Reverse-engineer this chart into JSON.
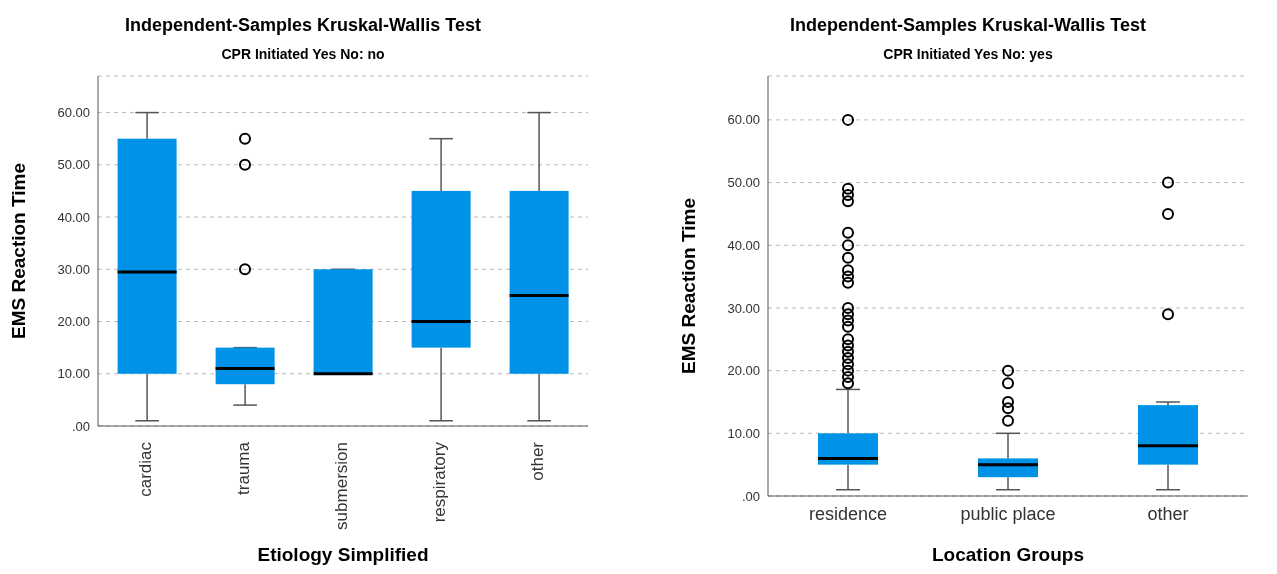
{
  "chart_data": [
    {
      "type": "box",
      "title": "Independent-Samples Kruskal-Wallis Test",
      "subtitle": "CPR Initiated Yes No: no",
      "xlabel": "Etiology Simplified",
      "ylabel": "EMS Reaction Time",
      "categories": [
        "cardiac",
        "trauma",
        "submersion",
        "respiratory",
        "other"
      ],
      "color": "#0092e6",
      "ylim": [
        0,
        67
      ],
      "yticks": [
        {
          "value": 0,
          "label": ".00"
        },
        {
          "value": 10,
          "label": "10.00"
        },
        {
          "value": 20,
          "label": "20.00"
        },
        {
          "value": 30,
          "label": "30.00"
        },
        {
          "value": 40,
          "label": "40.00"
        },
        {
          "value": 50,
          "label": "50.00"
        },
        {
          "value": 60,
          "label": "60.00"
        }
      ],
      "grid": "y",
      "boxes": [
        {
          "low": 1,
          "q1": 10,
          "median": 29.5,
          "q3": 55,
          "high": 60
        },
        {
          "low": 4,
          "q1": 8,
          "median": 11,
          "q3": 15,
          "high": 15,
          "outliers": [
            30,
            50,
            55
          ]
        },
        {
          "low": 10,
          "q1": 10,
          "median": 10,
          "q3": 30,
          "high": 30
        },
        {
          "low": 1,
          "q1": 15,
          "median": 20,
          "q3": 45,
          "high": 55
        },
        {
          "low": 1,
          "q1": 10,
          "median": 25,
          "q3": 45,
          "high": 60
        }
      ]
    },
    {
      "type": "box",
      "title": "Independent-Samples Kruskal-Wallis Test",
      "subtitle": "CPR Initiated Yes No: yes",
      "xlabel": "Location Groups",
      "ylabel": "EMS Reaction Time",
      "categories": [
        "residence",
        "public place",
        "other"
      ],
      "color": "#0092e6",
      "ylim": [
        0,
        67
      ],
      "yticks": [
        {
          "value": 0,
          "label": ".00"
        },
        {
          "value": 10,
          "label": "10.00"
        },
        {
          "value": 20,
          "label": "20.00"
        },
        {
          "value": 30,
          "label": "30.00"
        },
        {
          "value": 40,
          "label": "40.00"
        },
        {
          "value": 50,
          "label": "50.00"
        },
        {
          "value": 60,
          "label": "60.00"
        }
      ],
      "grid": "y",
      "boxes": [
        {
          "low": 1,
          "q1": 5,
          "median": 6,
          "q3": 10,
          "high": 17,
          "outliers": [
            18,
            19,
            20,
            21,
            22,
            23,
            24,
            25,
            27,
            28,
            29,
            30,
            34,
            35,
            36,
            38,
            40,
            42,
            47,
            48,
            49,
            60
          ]
        },
        {
          "low": 1,
          "q1": 3,
          "median": 5,
          "q3": 6,
          "high": 10,
          "outliers": [
            12,
            14,
            15,
            18,
            20
          ]
        },
        {
          "low": 1,
          "q1": 5,
          "median": 8,
          "q3": 14.5,
          "high": 15,
          "outliers": [
            29,
            45,
            50
          ]
        }
      ]
    }
  ]
}
